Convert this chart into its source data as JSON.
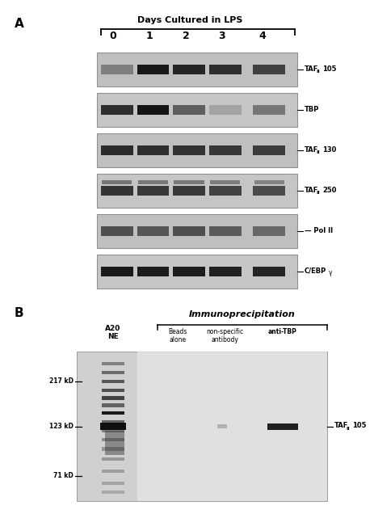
{
  "panel_a_title": "Days Cultured in LPS",
  "panel_a_days": [
    "0",
    "1",
    "2",
    "3",
    "4"
  ],
  "panel_a_labels": [
    "TAF",
    "TBP",
    "TAF",
    "TAF",
    "Pol II",
    "C/EBP"
  ],
  "panel_a_label_subs": [
    "II",
    "",
    "II",
    "II",
    "",
    ""
  ],
  "panel_a_label_nums": [
    "105",
    "",
    "130",
    "250",
    "",
    "γ"
  ],
  "panel_b_title": "Immunoprecipitation",
  "panel_b_col1": "A20\nNE",
  "panel_b_cols": [
    "Beads\nalone",
    "non-specific\nantibody",
    "anti-TBP"
  ],
  "panel_b_markers": [
    "217 kD",
    "123 kD",
    "71 kD"
  ],
  "panel_b_label_base": "TAF",
  "panel_b_label_sub": "II",
  "panel_b_label_num": "105",
  "bg_color": "#ffffff",
  "blot_bg": "#c8c8c8",
  "band_dark": "#0a0a0a",
  "band_mid": "#555555",
  "blot_border": "#808080"
}
